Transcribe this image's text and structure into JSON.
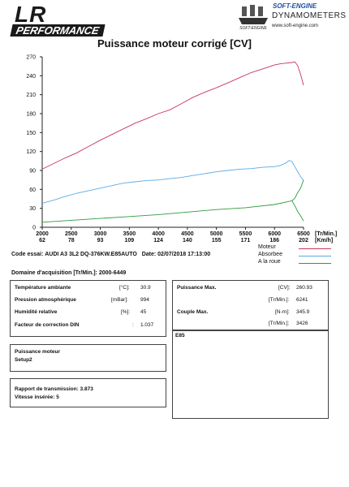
{
  "header": {
    "logo_main": "LR",
    "logo_sub": "PERFORMANCE",
    "brand_name": "SOFT-ENGINE",
    "brand_line": "DYNAMOMETERS",
    "brand_logo_text": "SOFT-ENGINE",
    "website": "www.soft-engine.com"
  },
  "chart_data": {
    "type": "line",
    "title": "Puissance moteur corrigé [CV]",
    "x_unit_label": "[Tr/Min.]",
    "x2_unit_label": "[Km/h]",
    "x_ticks": [
      2000,
      2500,
      3000,
      3500,
      4000,
      4500,
      5000,
      5500,
      6000,
      6500
    ],
    "x2_ticks": [
      62,
      78,
      93,
      109,
      124,
      140,
      155,
      171,
      186,
      202
    ],
    "xlim": [
      2000,
      6500
    ],
    "ylim": [
      0,
      270
    ],
    "y_ticks": [
      0,
      30,
      60,
      90,
      120,
      150,
      180,
      210,
      240,
      270
    ],
    "grid": false,
    "legend_position": "bottom-right",
    "series": [
      {
        "name": "Moteur",
        "color": "#c8365a",
        "x": [
          2000,
          2200,
          2400,
          2600,
          2800,
          3000,
          3200,
          3400,
          3600,
          3800,
          4000,
          4200,
          4400,
          4600,
          4800,
          5000,
          5200,
          5400,
          5600,
          5800,
          6000,
          6100,
          6200,
          6300,
          6350,
          6400,
          6450,
          6500
        ],
        "y": [
          92,
          101,
          110,
          118,
          128,
          138,
          147,
          156,
          165,
          172,
          180,
          186,
          196,
          206,
          214,
          221,
          229,
          237,
          245,
          251,
          257,
          259,
          260,
          261,
          262,
          256,
          242,
          225
        ]
      },
      {
        "name": "Absorbee",
        "color": "#5aaae6",
        "x": [
          2000,
          2200,
          2400,
          2600,
          2800,
          3000,
          3200,
          3400,
          3600,
          3800,
          4000,
          4200,
          4400,
          4600,
          4800,
          5000,
          5200,
          5400,
          5600,
          5800,
          6000,
          6100,
          6200,
          6250,
          6300,
          6350,
          6400,
          6450,
          6500
        ],
        "y": [
          38,
          43,
          49,
          54,
          58,
          62,
          66,
          70,
          72,
          74,
          75,
          77,
          79,
          82,
          85,
          88,
          90,
          92,
          93,
          95,
          96,
          98,
          102,
          106,
          104,
          96,
          88,
          80,
          74
        ]
      },
      {
        "name": "A la roue",
        "color": "#2f9a3e",
        "x": [
          2000,
          2500,
          3000,
          3500,
          4000,
          4500,
          5000,
          5500,
          6000,
          6200,
          6300,
          6350,
          6400,
          6450,
          6500
        ],
        "y": [
          8,
          11,
          14,
          17,
          20,
          24,
          28,
          31,
          36,
          40,
          42,
          46,
          55,
          62,
          75
        ]
      },
      {
        "name": "",
        "color": "#2f9a3e",
        "x": [
          6300,
          6350,
          6400,
          6450,
          6500
        ],
        "y": [
          42,
          34,
          25,
          18,
          10
        ]
      }
    ]
  },
  "test_info": {
    "code_label": "Code essai:",
    "code_value": "AUDI A3 3L2 DQ-376KW.E85AUTO",
    "date_label": "Date:",
    "date_value": "02/07/2018 17:13:00",
    "domain_label": "Domaine d'acquisition [Tr/Min.]:",
    "domain_value": "2000-6449"
  },
  "conditions": [
    {
      "label": "Température ambiante",
      "unit": "[°C]:",
      "value": "30.9"
    },
    {
      "label": "Pression atmosphérique",
      "unit": "[mBar]:",
      "value": "994"
    },
    {
      "label": "Humidité relative",
      "unit": "[%]:",
      "value": "45"
    },
    {
      "label": "Facteur de correction DIN",
      "unit": ":",
      "value": "1.037"
    }
  ],
  "results": [
    {
      "label": "Puissance Max.",
      "unit": "[CV]:",
      "value": "260.93"
    },
    {
      "label": "",
      "unit": "[Tr/Min.]:",
      "value": "6241"
    },
    {
      "label": "Couple Max.",
      "unit": "[N-m]:",
      "value": "345.9"
    },
    {
      "label": "",
      "unit": "[Tr/Min.]:",
      "value": "3426"
    }
  ],
  "notes": {
    "text": "E85"
  },
  "setup": {
    "line1": "Puissance moteur",
    "line2": "Setup2"
  },
  "transmission": {
    "line1": "Rapport de transmission: 3.873",
    "line2": "Vitesse insérée: 5"
  }
}
